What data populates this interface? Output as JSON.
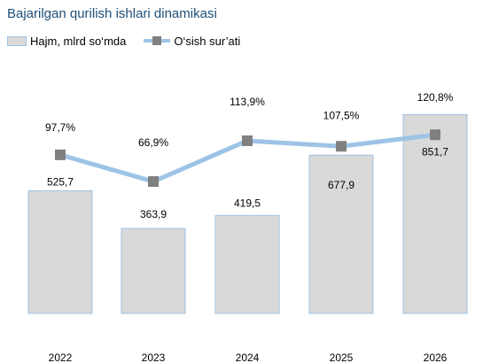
{
  "chart_data": {
    "type": "bar",
    "title": "Bajarilgan qurilish ishlari dinamikasi",
    "categories": [
      "2022",
      "2023",
      "2024",
      "2025",
      "2026"
    ],
    "series": [
      {
        "name": "Hajm, mlrd so‘mda",
        "type": "bar",
        "values": [
          525.7,
          363.9,
          419.5,
          677.9,
          851.7
        ],
        "labels": [
          "525,7",
          "363,9",
          "419,5",
          "677,9",
          "851,7"
        ],
        "color": "#d9d9d9",
        "border_color": "#9dc3e6"
      },
      {
        "name": "O‘sish sur’ati",
        "type": "line",
        "values": [
          97.7,
          66.9,
          113.9,
          107.5,
          120.8
        ],
        "labels": [
          "97,7%",
          "66,9%",
          "113,9%",
          "107,5%",
          "120,8%"
        ],
        "color": "#9dc3e6",
        "marker_color": "#808080"
      }
    ],
    "legend_position": "top-left",
    "grid": false
  }
}
